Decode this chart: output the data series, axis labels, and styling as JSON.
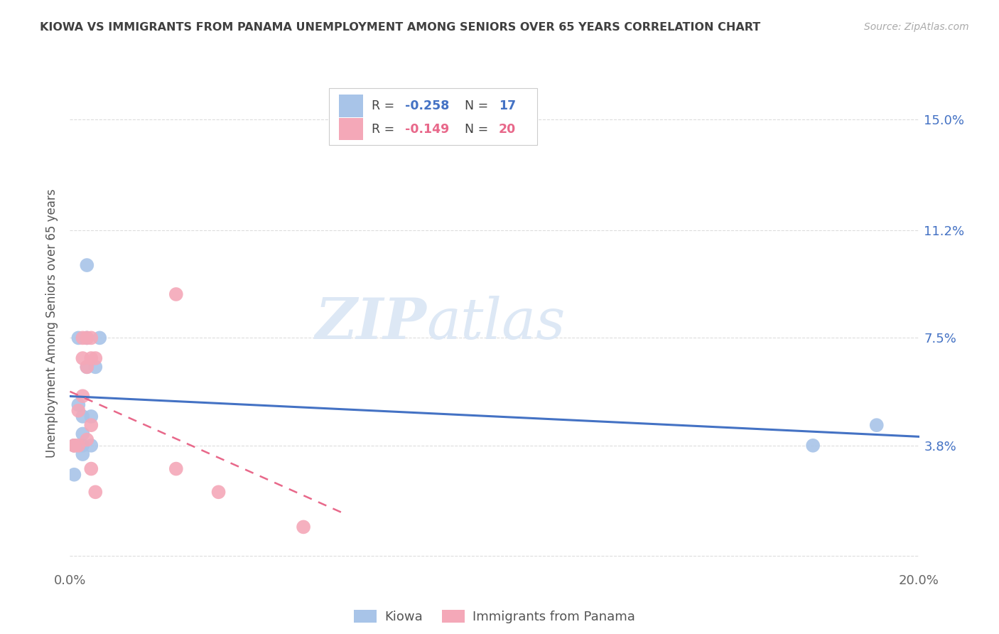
{
  "title": "KIOWA VS IMMIGRANTS FROM PANAMA UNEMPLOYMENT AMONG SENIORS OVER 65 YEARS CORRELATION CHART",
  "source": "Source: ZipAtlas.com",
  "ylabel": "Unemployment Among Seniors over 65 years",
  "xlim": [
    0.0,
    0.2
  ],
  "ylim": [
    -0.005,
    0.165
  ],
  "ytick_values": [
    0.0,
    0.038,
    0.075,
    0.112,
    0.15
  ],
  "ytick_labels": [
    "",
    "3.8%",
    "7.5%",
    "11.2%",
    "15.0%"
  ],
  "xtick_values": [
    0.0,
    0.02,
    0.04,
    0.06,
    0.08,
    0.1,
    0.12,
    0.14,
    0.16,
    0.18,
    0.2
  ],
  "kiowa_x": [
    0.001,
    0.001,
    0.002,
    0.002,
    0.003,
    0.003,
    0.003,
    0.003,
    0.004,
    0.004,
    0.004,
    0.005,
    0.005,
    0.006,
    0.007,
    0.175,
    0.19
  ],
  "kiowa_y": [
    0.038,
    0.028,
    0.075,
    0.052,
    0.038,
    0.035,
    0.048,
    0.042,
    0.075,
    0.065,
    0.1,
    0.038,
    0.048,
    0.065,
    0.075,
    0.038,
    0.045
  ],
  "panama_x": [
    0.001,
    0.001,
    0.002,
    0.002,
    0.003,
    0.003,
    0.003,
    0.004,
    0.004,
    0.004,
    0.005,
    0.005,
    0.005,
    0.005,
    0.006,
    0.006,
    0.025,
    0.025,
    0.035,
    0.055
  ],
  "panama_y": [
    0.038,
    0.038,
    0.038,
    0.05,
    0.075,
    0.068,
    0.055,
    0.075,
    0.04,
    0.065,
    0.075,
    0.045,
    0.068,
    0.03,
    0.068,
    0.022,
    0.09,
    0.03,
    0.022,
    0.01
  ],
  "kiowa_color": "#a8c4e8",
  "panama_color": "#f4a8b8",
  "kiowa_line_color": "#4472C4",
  "panama_line_color": "#E8688A",
  "kiowa_r": -0.258,
  "kiowa_n": 17,
  "panama_r": -0.149,
  "panama_n": 20,
  "watermark_zip": "ZIP",
  "watermark_atlas": "atlas",
  "background_color": "#ffffff",
  "grid_color": "#dddddd",
  "title_color": "#404040",
  "axis_label_color": "#555555",
  "right_tick_color": "#4472C4",
  "r_value_color": "#4472C4",
  "n_value_color": "#4472C4"
}
